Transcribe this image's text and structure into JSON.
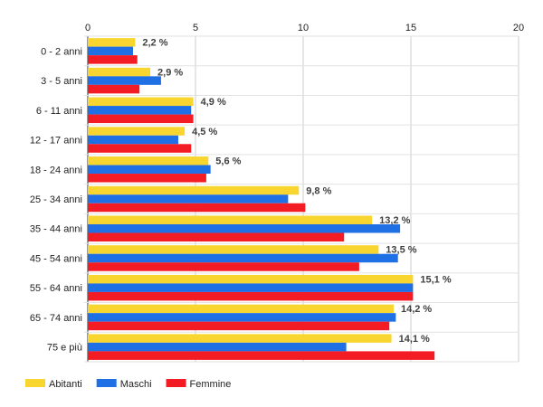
{
  "chart_data": {
    "type": "bar",
    "orientation": "horizontal",
    "categories": [
      "0 - 2 anni",
      "3 - 5 anni",
      "6 - 11 anni",
      "12 - 17 anni",
      "18 - 24 anni",
      "25 - 34 anni",
      "35 - 44 anni",
      "45 - 54 anni",
      "55 - 64 anni",
      "65 - 74 anni",
      "75 e più"
    ],
    "series": [
      {
        "name": "Abitanti",
        "color": "#f9d530",
        "values": [
          2.2,
          2.9,
          4.9,
          4.5,
          5.6,
          9.8,
          13.2,
          13.5,
          15.1,
          14.2,
          14.1
        ]
      },
      {
        "name": "Maschi",
        "color": "#1f6fe5",
        "values": [
          2.1,
          3.4,
          4.8,
          4.2,
          5.7,
          9.3,
          14.5,
          14.4,
          15.1,
          14.3,
          12.0
        ]
      },
      {
        "name": "Femmine",
        "color": "#f41c24",
        "values": [
          2.3,
          2.4,
          4.9,
          4.8,
          5.5,
          10.1,
          11.9,
          12.6,
          15.1,
          14.0,
          16.1
        ]
      }
    ],
    "data_labels": [
      "2,2 %",
      "2,9 %",
      "4,9 %",
      "4,5 %",
      "5,6 %",
      "9,8 %",
      "13,2 %",
      "13,5 %",
      "15,1 %",
      "14,2 %",
      "14,1 %"
    ],
    "xlim": [
      0,
      20
    ],
    "xticks": [
      0,
      5,
      10,
      15,
      20
    ],
    "tick_labels": [
      "0",
      "5",
      "10",
      "15",
      "20"
    ],
    "axis_position": "top",
    "grid": true,
    "legend_position": "bottom-left",
    "title": "",
    "xlabel": "",
    "ylabel": ""
  }
}
